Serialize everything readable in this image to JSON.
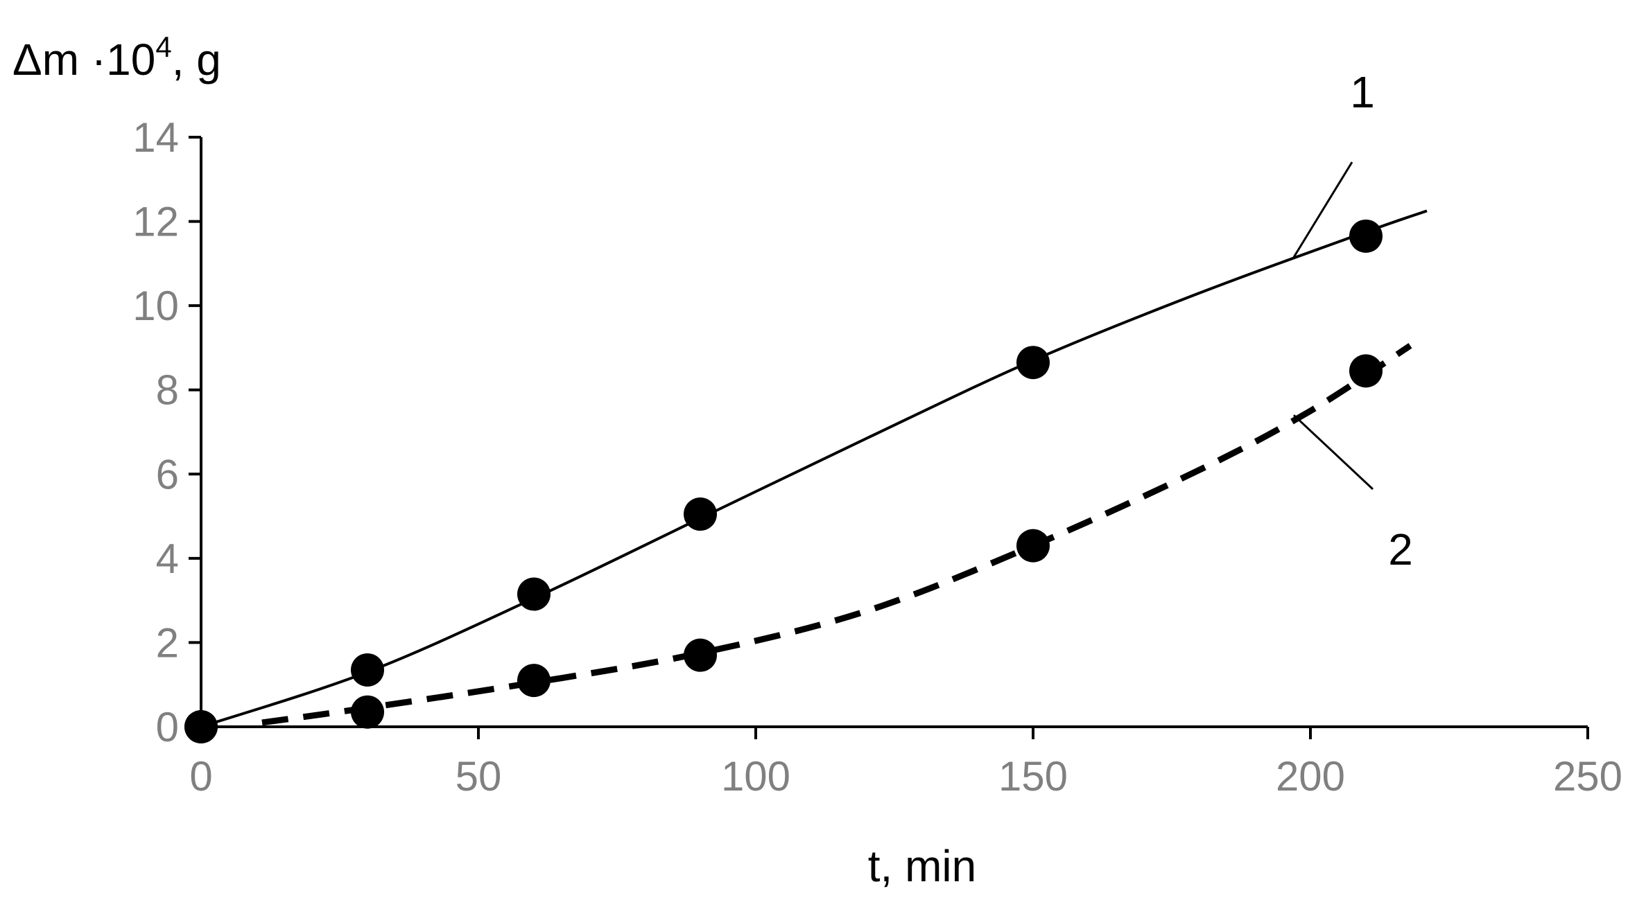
{
  "chart_data": {
    "type": "line",
    "title": "",
    "xlabel": "t, min",
    "ylabel": {
      "prefix": "Δm ·10",
      "sup": "4",
      "suffix": ", g"
    },
    "xlim": [
      0,
      250
    ],
    "ylim": [
      0,
      14
    ],
    "xticks": [
      "0",
      "50",
      "100",
      "150",
      "200",
      "250"
    ],
    "yticks": [
      "0",
      "2",
      "4",
      "6",
      "8",
      "10",
      "12",
      "14"
    ],
    "grid": false,
    "legend": "none",
    "series": [
      {
        "name": "1",
        "line_style": "solid",
        "color": "#000000",
        "points": [
          {
            "x": 0,
            "y": 0
          },
          {
            "x": 30,
            "y": 1.35
          },
          {
            "x": 60,
            "y": 3.15
          },
          {
            "x": 90,
            "y": 5.05
          },
          {
            "x": 150,
            "y": 8.65
          },
          {
            "x": 210,
            "y": 11.65
          }
        ],
        "curve": [
          {
            "x": 0,
            "y": 0
          },
          {
            "x": 30,
            "y": 1.3
          },
          {
            "x": 60,
            "y": 3.05
          },
          {
            "x": 90,
            "y": 4.95
          },
          {
            "x": 120,
            "y": 6.85
          },
          {
            "x": 150,
            "y": 8.7
          },
          {
            "x": 180,
            "y": 10.3
          },
          {
            "x": 210,
            "y": 11.75
          },
          {
            "x": 221,
            "y": 12.25
          }
        ]
      },
      {
        "name": "2",
        "line_style": "dashed",
        "color": "#000000",
        "points": [
          {
            "x": 0,
            "y": 0
          },
          {
            "x": 30,
            "y": 0.35
          },
          {
            "x": 60,
            "y": 1.1
          },
          {
            "x": 90,
            "y": 1.7
          },
          {
            "x": 150,
            "y": 4.3
          },
          {
            "x": 210,
            "y": 8.45
          }
        ],
        "curve": [
          {
            "x": 11,
            "y": 0.1
          },
          {
            "x": 30,
            "y": 0.45
          },
          {
            "x": 60,
            "y": 1.05
          },
          {
            "x": 90,
            "y": 1.75
          },
          {
            "x": 120,
            "y": 2.75
          },
          {
            "x": 150,
            "y": 4.3
          },
          {
            "x": 180,
            "y": 6.1
          },
          {
            "x": 200,
            "y": 7.5
          },
          {
            "x": 218,
            "y": 9.05
          }
        ]
      }
    ],
    "annotations": [
      {
        "text": "1",
        "series": "1"
      },
      {
        "text": "2",
        "series": "2"
      }
    ]
  }
}
